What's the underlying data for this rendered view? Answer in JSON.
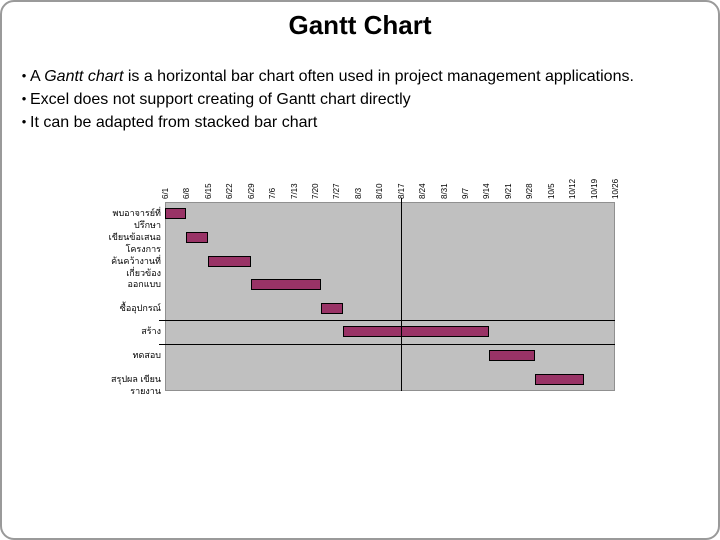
{
  "slide": {
    "title": "Gantt Chart",
    "bullet_glyph": "•",
    "bullets": [
      {
        "pre": "A ",
        "em": "Gantt chart",
        "post": " is a horizontal bar chart often used in project management applications."
      },
      {
        "pre": "",
        "em": "",
        "post": "Excel does not support creating of Gantt chart directly"
      },
      {
        "pre": "",
        "em": "",
        "post": "It can be adapted from stacked bar chart"
      }
    ]
  },
  "chart_data": {
    "type": "bar",
    "subtype": "gantt-from-stacked-bar",
    "title": "",
    "xlabel": "",
    "ylabel": "",
    "legend": false,
    "grid": false,
    "x_axis": {
      "start": "6/1",
      "end": "10/26",
      "tick_interval_days": 7,
      "tick_labels": [
        "6/1",
        "6/8",
        "6/15",
        "6/22",
        "6/29",
        "7/6",
        "7/13",
        "7/20",
        "7/27",
        "8/3",
        "8/10",
        "8/17",
        "8/24",
        "8/31",
        "9/7",
        "9/14",
        "9/21",
        "9/28",
        "10/5",
        "10/12",
        "10/19",
        "10/26"
      ]
    },
    "tasks": [
      {
        "label": "พบอาจารย์ที่ปรึกษา",
        "start": "6/1",
        "end": "6/8"
      },
      {
        "label": "เขียนข้อเสนอโครงการ",
        "start": "6/8",
        "end": "6/15"
      },
      {
        "label": "ค้นคว้างานที่เกี่ยวข้อง",
        "start": "6/15",
        "end": "6/29"
      },
      {
        "label": "ออกแบบ",
        "start": "6/29",
        "end": "7/22"
      },
      {
        "label": "ซื้ออุปกรณ์",
        "start": "7/22",
        "end": "7/29"
      },
      {
        "label": "สร้าง",
        "start": "7/29",
        "end": "9/15"
      },
      {
        "label": "ทดสอบ",
        "start": "9/15",
        "end": "9/30"
      },
      {
        "label": "สรุปผล เขียนรายงาน",
        "start": "9/30",
        "end": "10/16"
      }
    ],
    "current_date_line": "8/17",
    "separator_row_boundaries": [
      5,
      6
    ],
    "colors": {
      "bar_fill": "#993366",
      "bar_border": "#000000",
      "plot_bg": "#c0c0c0",
      "plot_border": "#909090",
      "line": "#000000",
      "text": "#000000"
    }
  }
}
